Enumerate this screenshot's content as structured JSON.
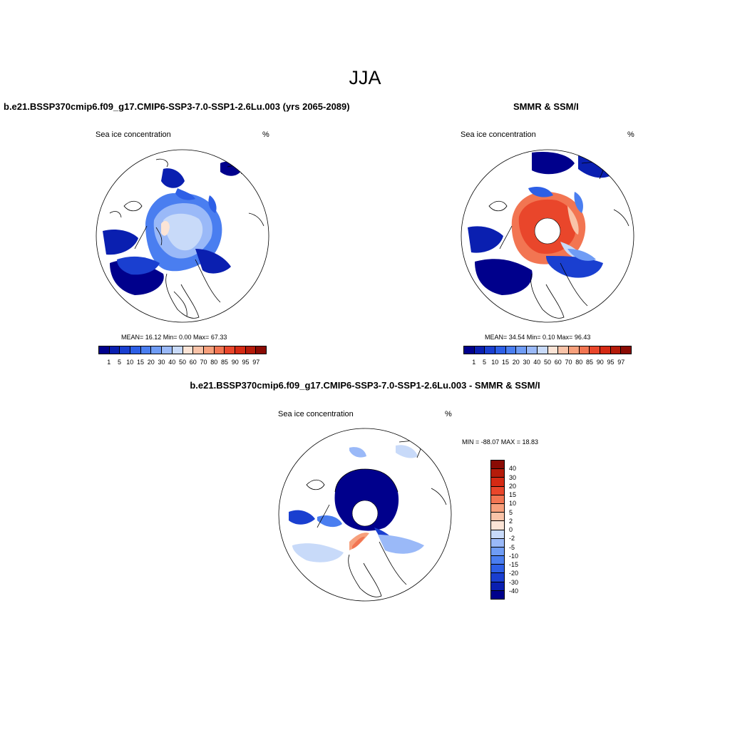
{
  "figure": {
    "title": "JJA"
  },
  "panels": [
    {
      "title": "b.e21.BSSP370cmip6.f09_g17.CMIP6-SSP3-7.0-SSP1-2.6Lu.003 (yrs 2065-2089)",
      "variable": "Sea ice concentration",
      "units": "%",
      "stats": "MEAN=  16.12  Min=   0.00  Max=  67.33"
    },
    {
      "title": "SMMR & SSM/I",
      "variable": "Sea ice concentration",
      "units": "%",
      "stats": "MEAN=  34.54  Min=   0.10  Max=  96.43"
    },
    {
      "title": "b.e21.BSSP370cmip6.f09_g17.CMIP6-SSP3-7.0-SSP1-2.6Lu.003 - SMMR & SSM/I",
      "variable": "Sea ice concentration",
      "units": "%",
      "stats": "MIN = -88.07 MAX =  18.83"
    }
  ],
  "colorbar_abs": {
    "labels": [
      "1",
      "5",
      "10",
      "15",
      "20",
      "30",
      "40",
      "50",
      "60",
      "70",
      "80",
      "85",
      "90",
      "95",
      "97"
    ],
    "colors": [
      "#00008c",
      "#0a1fb0",
      "#1a3fd0",
      "#2d5fe6",
      "#4a7ef0",
      "#6f9cf5",
      "#9ab9f8",
      "#c8daf9",
      "#fbe4d6",
      "#f9c3a8",
      "#f7a07c",
      "#f27552",
      "#e9462b",
      "#d52a14",
      "#b51b0a",
      "#8a0b04"
    ]
  },
  "colorbar_diff": {
    "labels": [
      "40",
      "30",
      "20",
      "15",
      "10",
      "5",
      "2",
      "0",
      "-2",
      "-5",
      "-10",
      "-15",
      "-20",
      "-30",
      "-40"
    ],
    "colors": [
      "#8a0b04",
      "#b51b0a",
      "#d52a14",
      "#e9462b",
      "#f27552",
      "#f7a07c",
      "#f9c3a8",
      "#fbe4d6",
      "#c8daf9",
      "#9ab9f8",
      "#6f9cf5",
      "#4a7ef0",
      "#2d5fe6",
      "#1a3fd0",
      "#0a1fb0",
      "#00008c"
    ]
  }
}
